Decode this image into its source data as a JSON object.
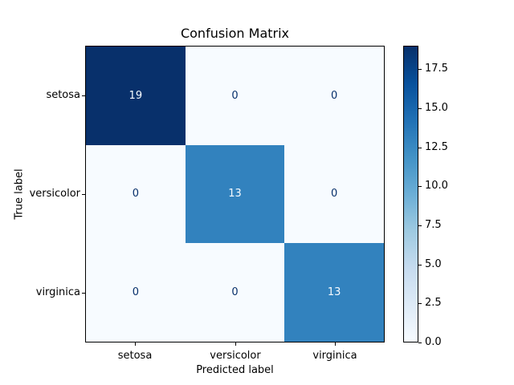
{
  "chart_data": {
    "type": "heatmap",
    "title": "Confusion Matrix",
    "xlabel": "Predicted label",
    "ylabel": "True label",
    "x_tick_labels": [
      "setosa",
      "versicolor",
      "virginica"
    ],
    "y_tick_labels": [
      "setosa",
      "versicolor",
      "virginica"
    ],
    "matrix": [
      [
        19,
        0,
        0
      ],
      [
        0,
        13,
        0
      ],
      [
        0,
        0,
        13
      ]
    ],
    "vmin": 0,
    "vmax": 19,
    "colormap": "Blues",
    "colormap_stops": [
      "#f7fbff",
      "#deebf7",
      "#c6dbef",
      "#9ecae1",
      "#6baed6",
      "#4292c6",
      "#2171b5",
      "#08519c",
      "#08306b"
    ],
    "cell_text_color_light": "#f7fbff",
    "cell_text_color_dark": "#08306b",
    "axis_color": "#000000",
    "grid": false,
    "legend_position": "right-colorbar",
    "colorbar": {
      "tick_labels": [
        "17.5",
        "15.0",
        "12.5",
        "10.0",
        "7.5",
        "5.0",
        "2.5",
        "0.0"
      ],
      "tick_values": [
        17.5,
        15.0,
        12.5,
        10.0,
        7.5,
        5.0,
        2.5,
        0.0
      ]
    }
  }
}
